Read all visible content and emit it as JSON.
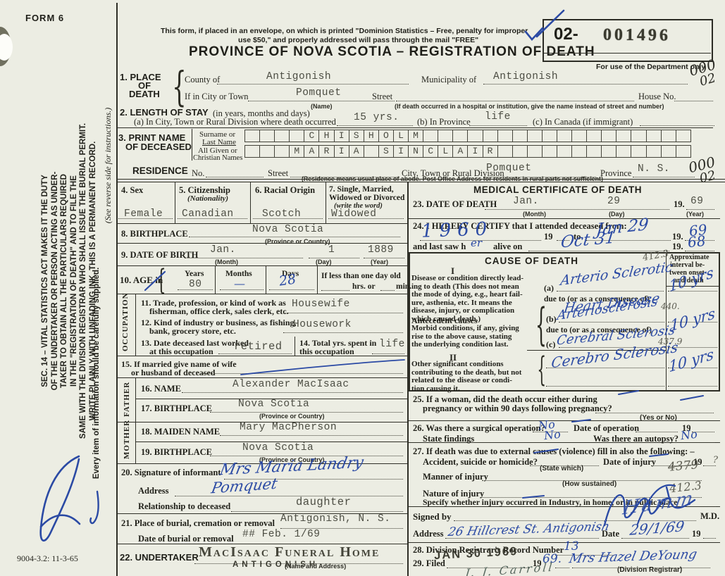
{
  "glyphs": {
    "brace": "{"
  },
  "meta": {
    "form_label": "FORM 6",
    "print_code": "9004-3.2: 11-3-65"
  },
  "margin": {
    "notice_lines": [
      "SEC. 14 – VITAL STATISTICS ACT MAKES IT THE DUTY",
      "OF THE UNDERTAKER OR PERSON ACTING AS UNDER-",
      "TAKER TO OBTAIN ALL THE PARTICULARS REQUIRED",
      "IN THE \"REGISTRATION OF DEATH\" AND TO FILE THE",
      "SAME WITH THE DIVISION REGISTRAR WHO SHALL ISSUE THE BURIAL PERMIT.",
      "WRITE PLAINLY WITH UNFADING INK. THIS IS A PERMANENT RECORD."
    ],
    "supplied_note": "Every item of information should be carefully supplied.",
    "reverse_note": "(See reverse side for instructions.)"
  },
  "header": {
    "mail_line1": "This form, if placed in an envelope, on which is printed \"Dominion Statistics – Free, penalty for improper",
    "mail_line2": "use $50,\" and properly addressed will pass through the mail \"FREE\"",
    "title": "PROVINCE OF NOVA SCOTIA – REGISTRATION OF DEATH",
    "number_prefix": "02-",
    "number": "001496",
    "dept_note": "For use of the Department only",
    "code1a": "000",
    "code1b": "02"
  },
  "place": {
    "no_label": "1. PLACE",
    "of_label": "OF",
    "death_label": "DEATH",
    "county_label": "County of",
    "county": "Antigonish",
    "municipality_label": "Municipality of",
    "municipality": "Antigonish",
    "city_label": "If in City or Town",
    "city": "Pomquet",
    "city_caption": "(Name)",
    "street_label": "Street",
    "house_label": "House No.",
    "street_caption": "(If death occurred in a hospital or institution, give the name instead of street and number)"
  },
  "stay": {
    "label": "2. LENGTH OF STAY",
    "sub": "(in years, months and days)",
    "a_label": "(a) In City, Town or Rural Division where death occurred",
    "a": "15 yrs.",
    "b_label": "(b) In Province",
    "b": "life",
    "c_label": "(c) In Canada (if immigrant)"
  },
  "name": {
    "label1": "3. PRINT NAME",
    "label2": "OF DECEASED",
    "surname_label1": "Surname or",
    "surname_label2": "Last Name",
    "given_label1": "All Given or",
    "given_label2": "Christian Names",
    "surname": "    CHISHOLM",
    "given": "   MARIA SINCLAIR"
  },
  "residence": {
    "label": "RESIDENCE",
    "no_label": "No.",
    "street_label": "Street",
    "city_label": "City, Town or Rural Division",
    "city": "Pomquet",
    "province_label": "Province",
    "province": "N. S.",
    "caption": "(Residence means usual place of abode. Post Office Address for residents in rural parts not sufficient)",
    "code2a": "000",
    "code2b": "02"
  },
  "personal": {
    "sex_label": "4. Sex",
    "sex": "Female",
    "cit_label": "5. Citizenship",
    "cit_sub": "(Nationality)",
    "cit": "Canadian",
    "race_label": "6. Racial Origin",
    "race": "Scotch",
    "marital_label1": "7. Single, Married,",
    "marital_label2": "Widowed or Divorced",
    "marital_sub": "(write the word)",
    "marital": "Widowed",
    "bp_label": "8. BIRTHPLACE",
    "bp": "Nova Scotia",
    "bp_caption": "(Province or Country)",
    "dob_label": "9. DATE OF BIRTH",
    "dob_month": "Jan.",
    "dob_month_cap": "(Month)",
    "dob_day": "1",
    "dob_day_cap": "(Day)",
    "dob_year": "1889",
    "dob_year_cap": "(Year)"
  },
  "age": {
    "label": "10. AGE in",
    "years_label": "Years",
    "years": "80",
    "months_label": "Months",
    "months": "—",
    "days_label": "Days",
    "days": "28",
    "less_label": "If less than one day old",
    "hrs_label": "hrs. or",
    "min_label": "min."
  },
  "occupation": {
    "side": "OCCUPATION",
    "t_label1": "11. Trade, profession, or kind of work as",
    "t_label2": "fisherman, office clerk, sales clerk, etc.",
    "t": "Housewife",
    "i_label1": "12. Kind of industry or business, as fishing,",
    "i_label2": "bank, grocery store, etc.",
    "i": "Housework",
    "lw_label1": "13. Date deceased last worked",
    "lw_label2": "at this occupation",
    "lw": "retired",
    "ty_label1": "14. Total yrs. spent in",
    "ty_label2": "this occupation",
    "ty": "life"
  },
  "spouse": {
    "label1": "15. If married give name of wife",
    "label2": "or husband of deceased"
  },
  "father": {
    "side": "FATHER",
    "name_label": "16. NAME",
    "name": "Alexander MacIsaac",
    "bp_label": "17. BIRTHPLACE",
    "bp": "Nova Scotia",
    "bp_caption": "(Province or Country)"
  },
  "mother": {
    "side": "MOTHER",
    "name_label": "18. MAIDEN NAME",
    "name": "Mary MacPherson",
    "bp_label": "19. BIRTHPLACE",
    "bp": "Nova Scotia",
    "bp_caption": "(Province or Country)"
  },
  "informant": {
    "label": "20. Signature of informant",
    "signature": "Mrs Maria Landry",
    "address_label": "Address",
    "address": "Pomquet",
    "rel_label": "Relationship to deceased",
    "rel": "daughter"
  },
  "burial": {
    "label": "21. Place of burial, cremation or removal",
    "place": "Antigonish, N. S.",
    "date_label": "Date of burial or removal",
    "date": "## Feb. 1/69"
  },
  "undertaker": {
    "label": "22. UNDERTAKER",
    "stamp_line1": "MacIsaac Funeral Home",
    "stamp_line2": "ANTIGONISH",
    "caption": "(Name and Address)"
  },
  "medical": {
    "title": "MEDICAL CERTIFICATE OF DEATH",
    "dod_label": "23. DATE OF DEATH",
    "dod_month": "Jan.",
    "dod_month_cap": "(Month)",
    "dod_day": "29",
    "dod_day_cap": "(Day)",
    "dod_y19": "19.",
    "dod_year": "69",
    "dod_year_cap": "(Year)",
    "certify_label": "24. I HEREBY CERTIFY that I attended deceased from:",
    "from_hw": "1960",
    "y19a": "19",
    "to_label": "to",
    "to_hw": "Jan 29",
    "y19b": "19.",
    "to_year_hw": "69",
    "lastsaw_label": "and last saw h",
    "lastsaw_hw": "er",
    "alive_label": "alive on",
    "alive_hw": "Oct 31",
    "y19c": "19.",
    "alive_year_hw": "68"
  },
  "cause": {
    "title": "CAUSE OF DEATH",
    "code_top": "412.3",
    "interval_h1": "Approximate",
    "interval_h2": "interval be-",
    "interval_h3": "tween onset",
    "interval_h4": "and death",
    "part1_no": "I",
    "p1_lines": [
      "Disease or condition directly lead-",
      "ing to death (This does not mean",
      "the mode of dying, e.g., heart fail-",
      "ure, asthenia, etc. It means the",
      "disease, injury, or complication",
      "which caused death.)"
    ],
    "a_label": "(a)",
    "a_hw": "Arterio Sclerotic",
    "dueto": "due to (or as a consequence of)",
    "a2_hw": "Heart Disease",
    "ante_h": "Antecedent causes",
    "ante_lines": [
      "Morbid conditions, if any, giving",
      "rise to the above cause, stating",
      "the underlying condition last."
    ],
    "b_label": "(b)",
    "b_hw": "Arteriosclerosis",
    "b_code": "440.",
    "c_label": "(c)",
    "c_hw": "Cerebral Sclerosis",
    "c_code": "437.9",
    "part2_no": "II",
    "p2_lines": [
      "Other significant conditions",
      "contributing to the death, but not",
      "related to the disease or condi-",
      "tion causing it."
    ],
    "p2_hw": "Cerebro Sclerosis",
    "interval_a": "10 yrs",
    "interval_b": "10 yrs",
    "interval_c": "10 yrs"
  },
  "pregnancy": {
    "label1": "25. If a woman, did the death occur either during",
    "label2": "pregnancy or within 90 days following pregnancy?",
    "caption": "(Yes or No)"
  },
  "operation": {
    "q_label": "26. Was there a surgical operation?",
    "q": "No",
    "date_label": "Date of operation",
    "y19": "19",
    "findings_label": "State findings",
    "findings": "No",
    "autopsy_label": "Was there an autopsy?",
    "autopsy": "No"
  },
  "external": {
    "label": "27. If death was due to external causes (violence) fill in also the following: –",
    "ash_label": "Accident, suicide or homicide?",
    "ash_caption": "(State which)",
    "doi_label": "Date of injury",
    "y19": "19",
    "manner_label": "Manner of injury",
    "manner_caption": "(How sustained)",
    "manner_code": "4379",
    "manner_mark": "?",
    "nature_label": "Nature of injury",
    "nature_code": "412.3",
    "specify_label": "Specify whether injury occurred in Industry, in home, or in public place"
  },
  "signed": {
    "label": "Signed by",
    "md": "M.D.",
    "signature_hw": "Hamm",
    "address_label": "Address",
    "address_hw": "26 Hillcrest St. Antigonish",
    "date_label": "Date",
    "date_hw": "29/1/69",
    "y19": "19"
  },
  "registrar": {
    "rec_label": "28. Division Registrar's Record Number",
    "rec": "13",
    "filed_label": "29. Filed",
    "stamp": "JAN 30 1969",
    "y19": "19",
    "year_hw": "69.",
    "name_hw": "Mrs Hazel DeYoung",
    "caption": "(Division Registrar)",
    "clerk_hw": "J. J. Carroll"
  }
}
